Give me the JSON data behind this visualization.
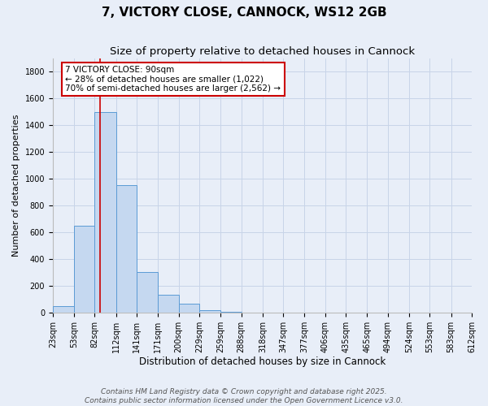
{
  "title": "7, VICTORY CLOSE, CANNOCK, WS12 2GB",
  "subtitle": "Size of property relative to detached houses in Cannock",
  "xlabel": "Distribution of detached houses by size in Cannock",
  "ylabel": "Number of detached properties",
  "bin_edges": [
    23,
    53,
    82,
    112,
    141,
    171,
    200,
    229,
    259,
    288,
    318,
    347,
    377,
    406,
    435,
    465,
    494,
    524,
    553,
    583,
    612
  ],
  "bar_heights": [
    50,
    650,
    1500,
    950,
    300,
    135,
    65,
    20,
    5,
    2,
    0,
    0,
    0,
    0,
    0,
    0,
    0,
    0,
    0,
    0
  ],
  "bar_color": "#c5d8f0",
  "bar_edgecolor": "#5b9bd5",
  "grid_color": "#c8d4e8",
  "background_color": "#e8eef8",
  "property_line_x": 90,
  "property_line_color": "#cc0000",
  "annotation_line1": "7 VICTORY CLOSE: 90sqm",
  "annotation_line2": "← 28% of detached houses are smaller (1,022)",
  "annotation_line3": "70% of semi-detached houses are larger (2,562) →",
  "annotation_box_edgecolor": "#cc0000",
  "annotation_box_facecolor": "#ffffff",
  "ylim": [
    0,
    1900
  ],
  "yticks": [
    0,
    200,
    400,
    600,
    800,
    1000,
    1200,
    1400,
    1600,
    1800
  ],
  "footer_line1": "Contains HM Land Registry data © Crown copyright and database right 2025.",
  "footer_line2": "Contains public sector information licensed under the Open Government Licence v3.0.",
  "title_fontsize": 11,
  "subtitle_fontsize": 9.5,
  "xlabel_fontsize": 8.5,
  "ylabel_fontsize": 8,
  "tick_fontsize": 7,
  "annotation_fontsize": 7.5,
  "footer_fontsize": 6.5
}
